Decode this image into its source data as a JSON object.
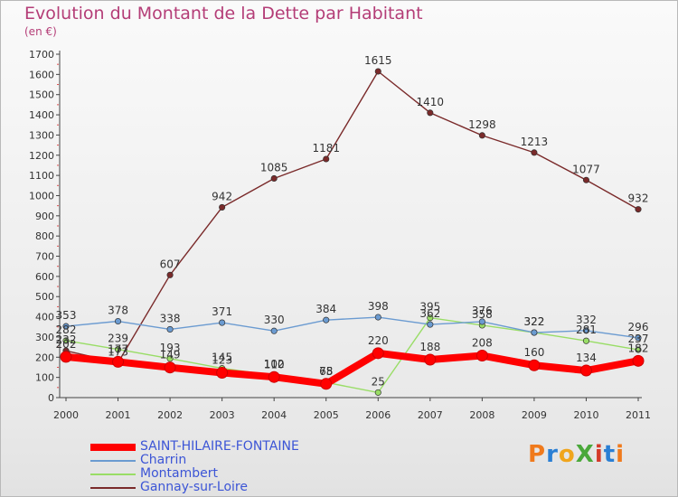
{
  "header": {
    "title": "Evolution du Montant de la Dette par Habitant",
    "unit": "(en €)"
  },
  "logo": {
    "text": "ProXiti",
    "colors": [
      "#f07a1c",
      "#2a7fd4",
      "#f0a51c",
      "#4aa83a",
      "#d43a2a",
      "#2a7fd4",
      "#f07a1c"
    ]
  },
  "chart_data": {
    "type": "line",
    "title": "Evolution du Montant de la Dette par Habitant",
    "ylabel": "(en €)",
    "xlabel": "",
    "x": [
      "2000",
      "2001",
      "2002",
      "2003",
      "2004",
      "2005",
      "2006",
      "2007",
      "2008",
      "2009",
      "2010",
      "2011"
    ],
    "ylim": [
      0,
      1700
    ],
    "yticks": [
      0,
      100,
      200,
      300,
      400,
      500,
      600,
      700,
      800,
      900,
      1000,
      1100,
      1200,
      1300,
      1400,
      1500,
      1600,
      1700
    ],
    "grid": false,
    "legend_position": "bottom-left",
    "series": [
      {
        "name": "SAINT-HILAIRE-FONTAINE",
        "color": "#ff0000",
        "values": [
          202,
          177,
          149,
          123,
          102,
          68,
          220,
          188,
          208,
          160,
          134,
          182
        ]
      },
      {
        "name": "Charrin",
        "color": "#6b9bd1",
        "values": [
          353,
          378,
          338,
          371,
          330,
          384,
          398,
          362,
          376,
          322,
          332,
          296
        ]
      },
      {
        "name": "Montambert",
        "color": "#99dd66",
        "values": [
          282,
          239,
          193,
          145,
          110,
          75,
          25,
          395,
          358,
          322,
          281,
          237
        ]
      },
      {
        "name": "Gannay-sur-Loire",
        "color": "#7a2a2a",
        "values": [
          232,
          173,
          607,
          942,
          1085,
          1181,
          1615,
          1410,
          1298,
          1213,
          1077,
          932
        ]
      }
    ]
  },
  "legend": [
    {
      "label": "SAINT-HILAIRE-FONTAINE",
      "color": "#ff0000"
    },
    {
      "label": "Charrin",
      "color": "#6b9bd1"
    },
    {
      "label": "Montambert",
      "color": "#99dd66"
    },
    {
      "label": "Gannay-sur-Loire",
      "color": "#7a2a2a"
    }
  ]
}
